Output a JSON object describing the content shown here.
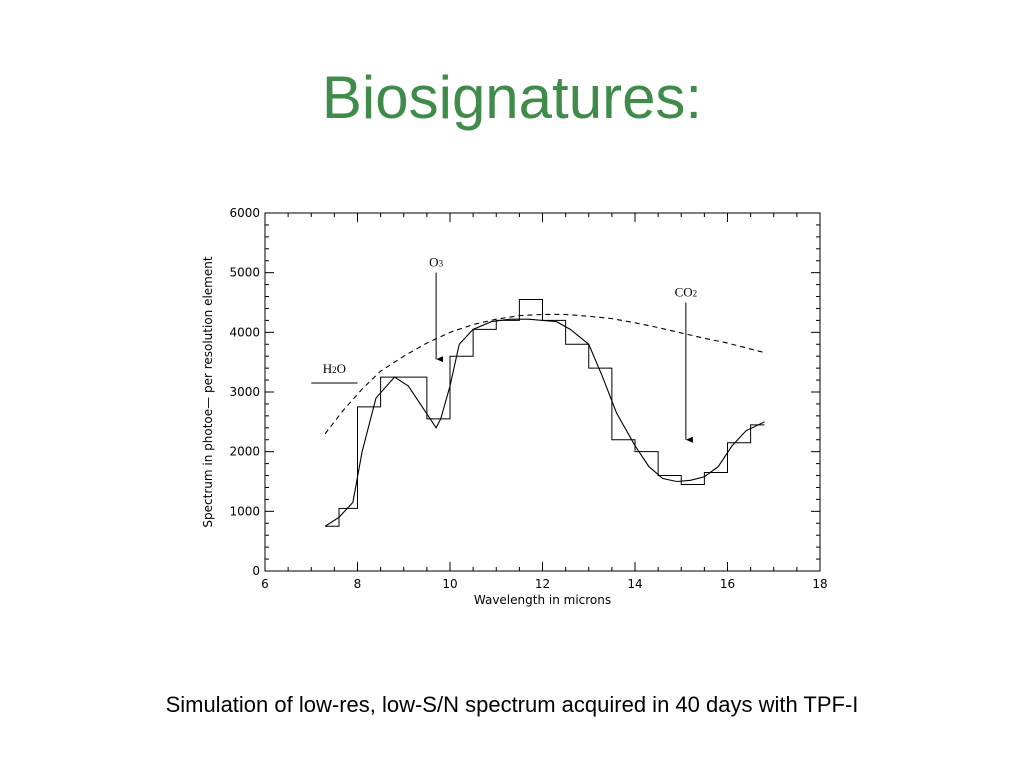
{
  "slide": {
    "title": "Biosignatures:",
    "caption": "Simulation of low-res, low-S/N spectrum acquired in 40 days with TPF-I"
  },
  "colors": {
    "title": "#3f8b4a",
    "ink": "#000000"
  },
  "chart_data": {
    "type": "line",
    "title": "",
    "xlabel": "Wavelength in microns",
    "ylabel": "Spectrum in photoe— per resolution element",
    "xlim": [
      6,
      18
    ],
    "ylim": [
      0,
      6000
    ],
    "x_ticks": [
      6,
      8,
      10,
      12,
      14,
      16,
      18
    ],
    "y_ticks": [
      0,
      1000,
      2000,
      3000,
      4000,
      5000,
      6000
    ],
    "grid": false,
    "series": [
      {
        "style": "solid",
        "x": [
          7.3,
          7.6,
          7.9,
          8.1,
          8.4,
          8.8,
          9.1,
          9.4,
          9.7,
          9.8,
          10.0,
          10.2,
          10.5,
          10.9,
          11.3,
          11.7,
          12.0,
          12.3,
          12.6,
          13.0,
          13.3,
          13.6,
          14.0,
          14.3,
          14.6,
          14.9,
          15.2,
          15.5,
          15.8,
          16.1,
          16.4,
          16.8
        ],
        "y": [
          750,
          900,
          1150,
          2000,
          2900,
          3250,
          3100,
          2750,
          2400,
          2550,
          3100,
          3800,
          4050,
          4180,
          4220,
          4220,
          4200,
          4180,
          4050,
          3800,
          3250,
          2650,
          2100,
          1750,
          1550,
          1500,
          1520,
          1580,
          1750,
          2100,
          2350,
          2500
        ]
      },
      {
        "style": "dashed",
        "x": [
          7.3,
          7.7,
          8.1,
          8.5,
          9.0,
          9.5,
          10.0,
          10.5,
          11.0,
          11.5,
          12.0,
          12.5,
          13.0,
          13.5,
          14.0,
          14.5,
          15.0,
          15.5,
          16.0,
          16.5,
          16.8
        ],
        "y": [
          2300,
          2700,
          3050,
          3350,
          3600,
          3820,
          4000,
          4130,
          4220,
          4280,
          4300,
          4300,
          4270,
          4230,
          4160,
          4080,
          3990,
          3900,
          3820,
          3720,
          3660
        ]
      },
      {
        "style": "step",
        "edges": [
          7.3,
          7.6,
          8.0,
          8.5,
          9.0,
          9.5,
          10.0,
          10.5,
          11.0,
          11.5,
          12.0,
          12.5,
          13.0,
          13.5,
          14.0,
          14.5,
          15.0,
          15.5,
          16.0,
          16.5,
          16.8
        ],
        "values": [
          750,
          1050,
          2750,
          3250,
          3250,
          2550,
          3600,
          4050,
          4200,
          4550,
          4200,
          3800,
          3400,
          2200,
          2000,
          1600,
          1450,
          1650,
          2150,
          2450
        ]
      }
    ],
    "annotations": [
      {
        "label": "O",
        "sub": "3",
        "arrow_x": 9.7,
        "arrow_from": 5000,
        "arrow_to": 3550
      },
      {
        "label": "CO",
        "sub": "2",
        "arrow_x": 15.1,
        "arrow_from": 4500,
        "arrow_to": 2200
      },
      {
        "label": "H",
        "sub": "2",
        "suffix": "O",
        "bar_x": [
          7.0,
          8.0
        ],
        "bar_y": 3150
      }
    ]
  }
}
